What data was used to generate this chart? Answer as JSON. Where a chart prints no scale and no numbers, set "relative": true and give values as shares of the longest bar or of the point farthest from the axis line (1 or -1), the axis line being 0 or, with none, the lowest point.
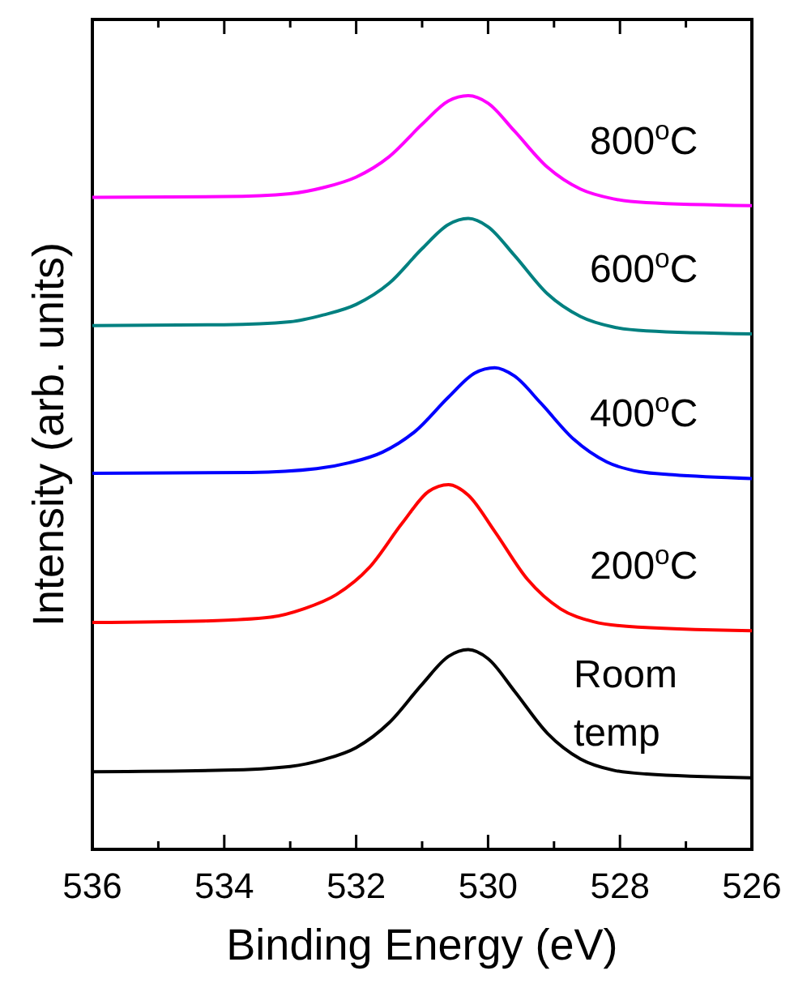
{
  "chart_data": {
    "type": "line",
    "relative": true,
    "xlabel": "Binding Energy (eV)",
    "ylabel": "Intensity (arb. units)",
    "xlim": [
      536,
      526
    ],
    "xticks": [
      536,
      {
        "value": 535,
        "label": null
      },
      534,
      {
        "value": 533,
        "label": null
      },
      532,
      {
        "value": 531,
        "label": null
      },
      530,
      {
        "value": 529,
        "label": null
      },
      528,
      {
        "value": 527,
        "label": null
      },
      526
    ],
    "tick_labels": "x",
    "legend": false,
    "grid": false,
    "line_style": "solid",
    "series": [
      {
        "name": "Room\ntemp",
        "color": "#000000",
        "x": [
          536,
          534,
          533,
          532.5,
          532,
          531.5,
          531,
          530.6,
          530.3,
          530,
          529.6,
          529.1,
          528.6,
          528.1,
          527.6,
          526
        ],
        "values": [
          0.103,
          0.105,
          0.11,
          0.119,
          0.135,
          0.168,
          0.219,
          0.256,
          0.265,
          0.253,
          0.21,
          0.154,
          0.12,
          0.105,
          0.1,
          0.095
        ]
      },
      {
        "name": "200$^{o}$C",
        "color": "#ff0000",
        "x": [
          536,
          534.3,
          533.3,
          532.8,
          532.3,
          531.8,
          531.3,
          530.9,
          530.6,
          530.3,
          529.9,
          529.4,
          528.9,
          528.4,
          527.9,
          526
        ],
        "values": [
          0.301,
          0.303,
          0.308,
          0.319,
          0.338,
          0.374,
          0.433,
          0.475,
          0.484,
          0.47,
          0.422,
          0.358,
          0.319,
          0.302,
          0.296,
          0.29
        ]
      },
      {
        "name": "400$^{o}$C",
        "color": "#0000ff",
        "x": [
          536,
          533.6,
          532.6,
          532.1,
          531.6,
          531.1,
          530.6,
          530.2,
          529.9,
          529.6,
          529.2,
          528.7,
          528.2,
          527.7,
          527.2,
          526
        ],
        "values": [
          0.499,
          0.5,
          0.505,
          0.513,
          0.527,
          0.555,
          0.6,
          0.632,
          0.639,
          0.628,
          0.592,
          0.544,
          0.514,
          0.501,
          0.497,
          0.492
        ]
      },
      {
        "name": "600$^{o}$C",
        "color": "#008080",
        "x": [
          536,
          534,
          533,
          532.5,
          532,
          531.5,
          531,
          530.6,
          530.3,
          530,
          529.6,
          529.1,
          528.6,
          528.1,
          527.6,
          526
        ],
        "values": [
          0.695,
          0.696,
          0.7,
          0.709,
          0.723,
          0.751,
          0.797,
          0.829,
          0.837,
          0.826,
          0.788,
          0.737,
          0.707,
          0.693,
          0.688,
          0.684
        ]
      },
      {
        "name": "800$^{o}$C",
        "color": "#ff00ff",
        "x": [
          536,
          534,
          533,
          532.5,
          532,
          531.5,
          531,
          530.6,
          530.3,
          530,
          529.6,
          529.1,
          528.6,
          528.1,
          527.6,
          526
        ],
        "values": [
          0.865,
          0.866,
          0.87,
          0.878,
          0.892,
          0.919,
          0.962,
          0.993,
          1,
          0.99,
          0.953,
          0.905,
          0.876,
          0.863,
          0.858,
          0.854
        ]
      }
    ]
  }
}
